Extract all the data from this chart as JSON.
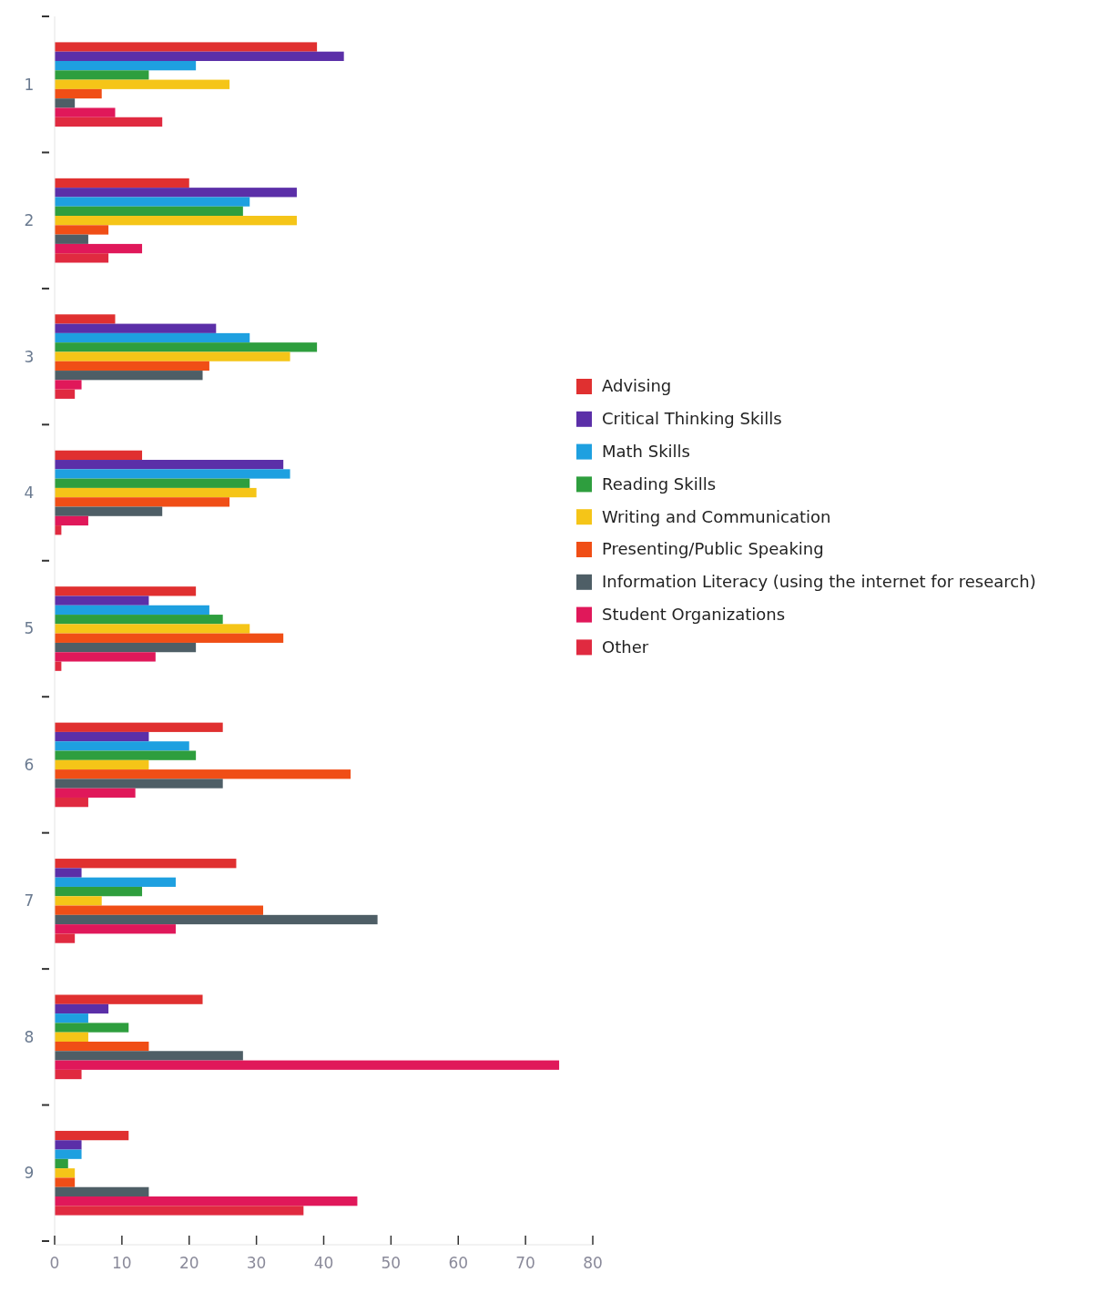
{
  "chart_data": {
    "type": "bar",
    "orientation": "horizontal",
    "categories": [
      "1",
      "2",
      "3",
      "4",
      "5",
      "6",
      "7",
      "8",
      "9"
    ],
    "series": [
      {
        "name": "Advising",
        "color": "#e03030",
        "values": [
          39,
          20,
          9,
          13,
          21,
          25,
          27,
          22,
          11
        ]
      },
      {
        "name": "Critical Thinking Skills",
        "color": "#5b2fa8",
        "values": [
          43,
          36,
          24,
          34,
          14,
          14,
          4,
          8,
          4
        ]
      },
      {
        "name": "Math Skills",
        "color": "#1ea0e0",
        "values": [
          21,
          29,
          29,
          35,
          23,
          20,
          18,
          5,
          4
        ]
      },
      {
        "name": "Reading Skills",
        "color": "#2e9e3e",
        "values": [
          14,
          28,
          39,
          29,
          25,
          21,
          13,
          11,
          2
        ]
      },
      {
        "name": "Writing and Communication",
        "color": "#f5c518",
        "values": [
          26,
          36,
          35,
          30,
          29,
          14,
          7,
          5,
          3
        ]
      },
      {
        "name": "Presenting/Public Speaking",
        "color": "#f04e16",
        "values": [
          7,
          8,
          23,
          26,
          34,
          44,
          31,
          14,
          3
        ]
      },
      {
        "name": "Information Literacy (using the internet for research)",
        "color": "#4e5e66",
        "values": [
          3,
          5,
          22,
          16,
          21,
          25,
          48,
          28,
          14
        ]
      },
      {
        "name": "Student Organizations",
        "color": "#e0185a",
        "values": [
          9,
          13,
          4,
          5,
          15,
          12,
          18,
          75,
          45
        ]
      },
      {
        "name": "Other",
        "color": "#e02a40",
        "values": [
          16,
          8,
          3,
          1,
          1,
          5,
          3,
          4,
          37
        ]
      }
    ],
    "xlim": [
      0,
      80
    ],
    "xticks": [
      0,
      10,
      20,
      30,
      40,
      50,
      60,
      70,
      80
    ],
    "grid": false,
    "legend": "right"
  }
}
